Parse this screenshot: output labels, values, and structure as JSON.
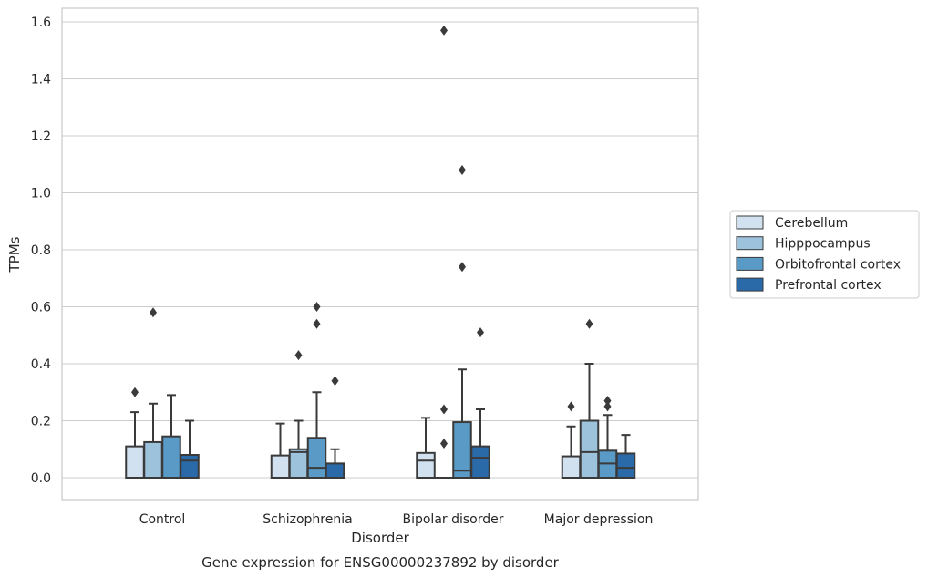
{
  "chart_data": {
    "type": "box",
    "caption": "Gene expression for ENSG00000237892 by disorder",
    "xlabel": "Disorder",
    "ylabel": "TPMs",
    "ylim": [
      -0.077,
      1.65
    ],
    "yticks": [
      0.0,
      0.2,
      0.4,
      0.6,
      0.8,
      1.0,
      1.2,
      1.4,
      1.6
    ],
    "ytick_labels": [
      "0.0",
      "0.2",
      "0.4",
      "0.6",
      "0.8",
      "1.0",
      "1.2",
      "1.4",
      "1.6"
    ],
    "grid": "horizontal",
    "legend_position": "right",
    "categories": [
      "Control",
      "Schizophrenia",
      "Bipolar disorder",
      "Major depression"
    ],
    "series": [
      {
        "name": "Cerebellum",
        "color": "#d1e1f0",
        "boxes": [
          {
            "low": 0.0,
            "q1": 0.0,
            "median": 0.0,
            "q3": 0.11,
            "high": 0.23,
            "fliers": [
              0.3
            ]
          },
          {
            "low": 0.0,
            "q1": 0.0,
            "median": 0.0,
            "q3": 0.078,
            "high": 0.19,
            "fliers": []
          },
          {
            "low": 0.0,
            "q1": 0.0,
            "median": 0.06,
            "q3": 0.087,
            "high": 0.21,
            "fliers": []
          },
          {
            "low": 0.0,
            "q1": 0.0,
            "median": 0.0,
            "q3": 0.075,
            "high": 0.18,
            "fliers": [
              0.25
            ]
          }
        ]
      },
      {
        "name": "Hipppocampus",
        "color": "#9cc2dc",
        "boxes": [
          {
            "low": 0.0,
            "q1": 0.0,
            "median": 0.0,
            "q3": 0.125,
            "high": 0.26,
            "fliers": [
              0.58
            ]
          },
          {
            "low": 0.0,
            "q1": 0.0,
            "median": 0.09,
            "q3": 0.1,
            "high": 0.2,
            "fliers": [
              0.43
            ]
          },
          {
            "low": 0.0,
            "q1": 0.0,
            "median": 0.0,
            "q3": 0.0,
            "high": 0.0,
            "fliers": [
              0.12,
              0.24,
              1.57
            ]
          },
          {
            "low": 0.0,
            "q1": 0.0,
            "median": 0.09,
            "q3": 0.2,
            "high": 0.4,
            "fliers": [
              0.54
            ]
          }
        ]
      },
      {
        "name": "Orbitofrontal cortex",
        "color": "#5a9ac6",
        "boxes": [
          {
            "low": 0.0,
            "q1": 0.0,
            "median": 0.0,
            "q3": 0.145,
            "high": 0.29,
            "fliers": []
          },
          {
            "low": 0.0,
            "q1": 0.0,
            "median": 0.035,
            "q3": 0.14,
            "high": 0.3,
            "fliers": [
              0.54,
              0.6
            ]
          },
          {
            "low": 0.0,
            "q1": 0.0,
            "median": 0.025,
            "q3": 0.195,
            "high": 0.38,
            "fliers": [
              0.74,
              1.08
            ]
          },
          {
            "low": 0.0,
            "q1": 0.0,
            "median": 0.05,
            "q3": 0.095,
            "high": 0.22,
            "fliers": [
              0.25,
              0.27
            ]
          }
        ]
      },
      {
        "name": "Prefrontal cortex",
        "color": "#2a6aa8",
        "boxes": [
          {
            "low": 0.0,
            "q1": 0.0,
            "median": 0.06,
            "q3": 0.08,
            "high": 0.2,
            "fliers": []
          },
          {
            "low": 0.0,
            "q1": 0.0,
            "median": 0.0,
            "q3": 0.05,
            "high": 0.1,
            "fliers": [
              0.34
            ]
          },
          {
            "low": 0.0,
            "q1": 0.0,
            "median": 0.07,
            "q3": 0.11,
            "high": 0.24,
            "fliers": [
              0.51
            ]
          },
          {
            "low": 0.0,
            "q1": 0.0,
            "median": 0.035,
            "q3": 0.085,
            "high": 0.15,
            "fliers": []
          }
        ]
      }
    ]
  }
}
